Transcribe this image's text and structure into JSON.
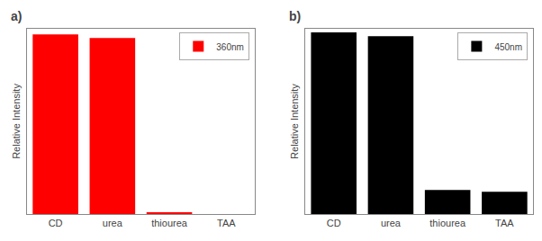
{
  "chart_data": [
    {
      "type": "bar",
      "title": "a)",
      "categories": [
        "CD",
        "urea",
        "thiourea",
        "TAA"
      ],
      "series": [
        {
          "name": "360nm",
          "color": "#ff0000",
          "values": [
            0.97,
            0.95,
            0.005,
            0.0
          ]
        }
      ],
      "ylabel": "Relative Intensity",
      "ylim": [
        0,
        1.0
      ],
      "grid": false,
      "legend": "upper right",
      "tick_labels": "x"
    },
    {
      "type": "bar",
      "title": "b)",
      "categories": [
        "CD",
        "urea",
        "thiourea",
        "TAA"
      ],
      "series": [
        {
          "name": "450nm",
          "color": "#000000",
          "values": [
            0.98,
            0.96,
            0.13,
            0.12
          ]
        }
      ],
      "ylabel": "Relative Intensity",
      "ylim": [
        0,
        1.0
      ],
      "grid": false,
      "legend": "upper right",
      "tick_labels": "x"
    }
  ]
}
